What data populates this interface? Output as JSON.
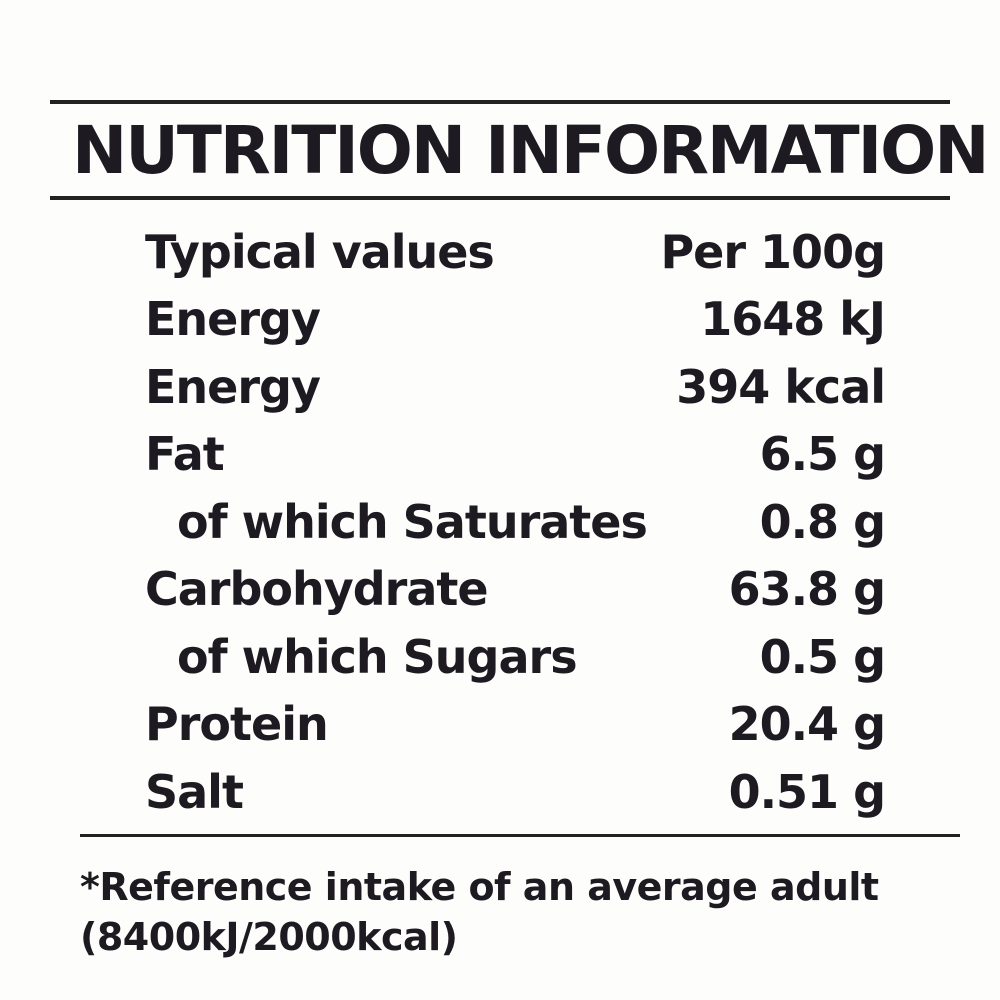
{
  "header": {
    "title": "NUTRITION INFORMATION"
  },
  "table": {
    "rows": [
      [
        "Typical values",
        "Per 100g"
      ],
      [
        "Energy",
        "1648 kJ"
      ],
      [
        "Energy",
        "394 kcal"
      ],
      [
        "Fat",
        "6.5 g"
      ],
      [
        "of which Saturates",
        "0.8 g"
      ],
      [
        "Carbohydrate",
        "63.8 g"
      ],
      [
        "of which Sugars",
        "0.5 g"
      ],
      [
        "Protein",
        "20.4 g"
      ],
      [
        "Salt",
        "0.51 g"
      ]
    ]
  },
  "footnote": {
    "lines": [
      "*Reference intake of an average adult",
      "(8400kJ/2000kcal)"
    ]
  }
}
